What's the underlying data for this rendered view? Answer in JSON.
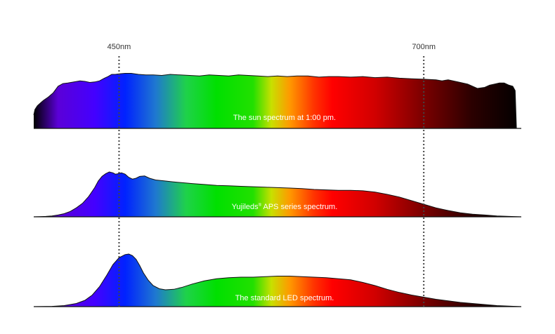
{
  "chart_data": {
    "type": "area",
    "title": "",
    "xlabel": "",
    "ylabel": "",
    "x_unit": "nm",
    "xlim": [
      380,
      780
    ],
    "markers": [
      {
        "value": 450,
        "label": "450nm"
      },
      {
        "value": 700,
        "label": "700nm"
      }
    ],
    "color_stops": [
      {
        "nm": 380,
        "color": "#000000"
      },
      {
        "nm": 400,
        "color": "#5b00d8"
      },
      {
        "nm": 430,
        "color": "#4400ff"
      },
      {
        "nm": 455,
        "color": "#0022ff"
      },
      {
        "nm": 480,
        "color": "#1f78d0"
      },
      {
        "nm": 505,
        "color": "#1fd24a"
      },
      {
        "nm": 530,
        "color": "#00e000"
      },
      {
        "nm": 560,
        "color": "#22e000"
      },
      {
        "nm": 575,
        "color": "#c8e000"
      },
      {
        "nm": 590,
        "color": "#ff9900"
      },
      {
        "nm": 610,
        "color": "#ff3300"
      },
      {
        "nm": 625,
        "color": "#ff0000"
      },
      {
        "nm": 660,
        "color": "#d10000"
      },
      {
        "nm": 700,
        "color": "#7a0000"
      },
      {
        "nm": 740,
        "color": "#2a0000"
      },
      {
        "nm": 780,
        "color": "#000000"
      }
    ],
    "panels": [
      {
        "label": "The sun spectrum at 1:00 pm.",
        "label_sup": "",
        "series": {
          "x": [
            380,
            381,
            383,
            386,
            388,
            392,
            396,
            400,
            404,
            408,
            413,
            418,
            422,
            426,
            430,
            434,
            438,
            441,
            444,
            447,
            450,
            455,
            460,
            466,
            472,
            478,
            485,
            492,
            500,
            508,
            516,
            524,
            532,
            540,
            548,
            556,
            564,
            572,
            580,
            588,
            596,
            605,
            614,
            622,
            630,
            640,
            650,
            660,
            670,
            680,
            690,
            700,
            710,
            715,
            720,
            728,
            736,
            744,
            750,
            754,
            758,
            762,
            766,
            770,
            773,
            775,
            776
          ],
          "y": [
            0.25,
            0.35,
            0.42,
            0.48,
            0.52,
            0.58,
            0.66,
            0.78,
            0.83,
            0.84,
            0.86,
            0.88,
            0.87,
            0.85,
            0.86,
            0.88,
            0.93,
            0.96,
            1.0,
            1.0,
            1.01,
            1.02,
            1.02,
            1.0,
            0.99,
            0.99,
            0.98,
            1.0,
            0.99,
            0.98,
            0.97,
            0.99,
            0.98,
            0.97,
            0.99,
            0.98,
            0.97,
            0.96,
            0.97,
            0.96,
            0.97,
            0.97,
            0.95,
            0.96,
            0.96,
            0.95,
            0.96,
            0.94,
            0.95,
            0.93,
            0.92,
            0.91,
            0.9,
            0.88,
            0.9,
            0.86,
            0.82,
            0.74,
            0.76,
            0.8,
            0.82,
            0.84,
            0.84,
            0.8,
            0.78,
            0.7,
            0.0
          ]
        }
      },
      {
        "label": "Yujileds",
        "label_sup": "®",
        "label_suffix": " APS series spectrum.",
        "series": {
          "x": [
            380,
            385,
            390,
            395,
            400,
            405,
            410,
            415,
            420,
            425,
            430,
            433,
            436,
            439,
            442,
            445,
            447,
            449,
            452,
            455,
            458,
            461,
            464,
            467,
            471,
            475,
            480,
            487,
            494,
            502,
            510,
            520,
            530,
            540,
            550,
            560,
            570,
            580,
            590,
            600,
            610,
            620,
            630,
            640,
            650,
            660,
            670,
            680,
            690,
            700,
            710,
            720,
            730,
            740,
            750,
            760,
            770,
            780
          ],
          "y": [
            0.0,
            0.005,
            0.01,
            0.02,
            0.04,
            0.07,
            0.12,
            0.2,
            0.3,
            0.45,
            0.65,
            0.8,
            0.9,
            0.96,
            1.0,
            0.98,
            0.95,
            0.96,
            0.98,
            0.95,
            0.88,
            0.84,
            0.86,
            0.9,
            0.91,
            0.86,
            0.82,
            0.8,
            0.78,
            0.76,
            0.74,
            0.72,
            0.7,
            0.69,
            0.68,
            0.67,
            0.66,
            0.65,
            0.64,
            0.63,
            0.61,
            0.6,
            0.59,
            0.59,
            0.58,
            0.55,
            0.5,
            0.44,
            0.36,
            0.28,
            0.2,
            0.14,
            0.09,
            0.06,
            0.04,
            0.02,
            0.01,
            0.0
          ]
        }
      },
      {
        "label": "The standard LED spectrum.",
        "label_sup": "",
        "series": {
          "x": [
            380,
            395,
            405,
            415,
            422,
            428,
            434,
            440,
            445,
            450,
            455,
            458,
            461,
            464,
            467,
            470,
            474,
            478,
            483,
            488,
            495,
            502,
            510,
            520,
            530,
            540,
            550,
            560,
            570,
            580,
            590,
            600,
            610,
            620,
            630,
            640,
            650,
            660,
            670,
            680,
            690,
            700,
            710,
            720,
            730,
            740,
            750,
            760,
            770,
            780
          ],
          "y": [
            0.0,
            0.005,
            0.02,
            0.06,
            0.12,
            0.22,
            0.38,
            0.6,
            0.8,
            0.93,
            0.99,
            1.0,
            0.97,
            0.9,
            0.78,
            0.64,
            0.5,
            0.4,
            0.34,
            0.32,
            0.33,
            0.37,
            0.43,
            0.49,
            0.53,
            0.55,
            0.56,
            0.56,
            0.57,
            0.58,
            0.58,
            0.57,
            0.56,
            0.55,
            0.53,
            0.51,
            0.46,
            0.4,
            0.33,
            0.27,
            0.22,
            0.18,
            0.14,
            0.11,
            0.08,
            0.06,
            0.04,
            0.02,
            0.01,
            0.0
          ]
        }
      }
    ]
  }
}
